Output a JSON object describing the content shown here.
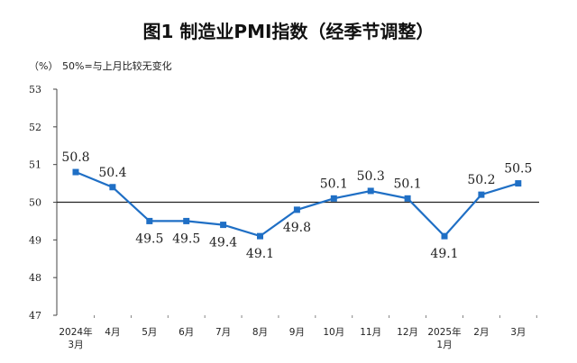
{
  "chart_data": {
    "type": "line",
    "title": "图1  制造业PMI指数（经季节调整）",
    "unit_label": "（%）",
    "reference_note": "50%=与上月比较无变化",
    "reference_value": 50,
    "categories": [
      [
        "2024年",
        "3月"
      ],
      [
        "4月"
      ],
      [
        "5月"
      ],
      [
        "6月"
      ],
      [
        "7月"
      ],
      [
        "8月"
      ],
      [
        "9月"
      ],
      [
        "10月"
      ],
      [
        "11月"
      ],
      [
        "12月"
      ],
      [
        "2025年",
        "1月"
      ],
      [
        "2月"
      ],
      [
        "3月"
      ]
    ],
    "values": [
      50.8,
      50.4,
      49.5,
      49.5,
      49.4,
      49.1,
      49.8,
      50.1,
      50.3,
      50.1,
      49.1,
      50.2,
      50.5
    ],
    "value_labels": [
      "50.8",
      "50.4",
      "49.5",
      "49.5",
      "49.4",
      "49.1",
      "49.8",
      "50.1",
      "50.3",
      "50.1",
      "49.1",
      "50.2",
      "50.5"
    ],
    "label_position": [
      "above",
      "above",
      "below",
      "below",
      "below",
      "below",
      "below",
      "above",
      "above",
      "above",
      "below",
      "above",
      "above"
    ],
    "ylim": [
      47,
      53
    ],
    "yticks": [
      "47",
      "48",
      "49",
      "50",
      "51",
      "52",
      "53"
    ],
    "series_color": "#1f6fc5",
    "grid": false,
    "legend": "none"
  }
}
